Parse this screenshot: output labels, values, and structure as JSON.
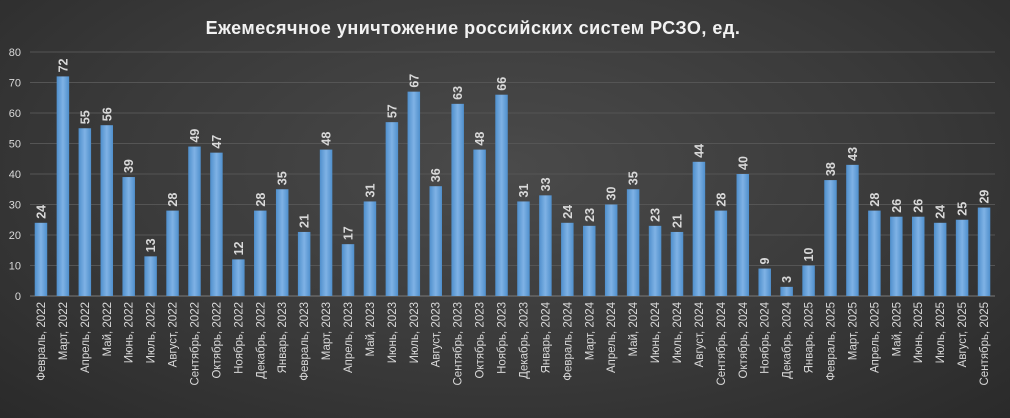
{
  "chart_data": {
    "type": "bar",
    "title": "Ежемесячное  уничтожение  российских  систем РСЗО,  ед.",
    "xlabel": "",
    "ylabel": "",
    "ylim": [
      0,
      80
    ],
    "yticks": [
      0,
      10,
      20,
      30,
      40,
      50,
      60,
      70,
      80
    ],
    "grid": true,
    "bar_color": "#5b9bd5",
    "categories": [
      "Февраль, 2022",
      "Март, 2022",
      "Апрель, 2022",
      "Май, 2022",
      "Июнь, 2022",
      "Июль, 2022",
      "Август, 2022",
      "Сентябрь, 2022",
      "Октябрь, 2022",
      "Ноябрь, 2022",
      "Декабрь, 2022",
      "Январь, 2023",
      "Февраль, 2023",
      "Март, 2023",
      "Апрель, 2023",
      "Май, 2023",
      "Июнь, 2023",
      "Июль, 2023",
      "Август, 2023",
      "Сентябрь, 2023",
      "Октябрь, 2023",
      "Ноябрь, 2023",
      "Декабрь, 2023",
      "Январь, 2024",
      "Февраль, 2024",
      "Март, 2024",
      "Апрель, 2024",
      "Май, 2024",
      "Июнь, 2024",
      "Июль, 2024",
      "Август, 2024",
      "Сентябрь, 2024",
      "Октябрь, 2024",
      "Ноябрь, 2024",
      "Декабрь, 2024",
      "Январь, 2025",
      "Февраль, 2025",
      "Март, 2025",
      "Апрель, 2025",
      "Май, 2025",
      "Июнь, 2025",
      "Июль, 2025",
      "Август, 2025",
      "Сентябрь, 2025"
    ],
    "values": [
      24,
      72,
      55,
      56,
      39,
      13,
      28,
      49,
      47,
      12,
      28,
      35,
      21,
      48,
      17,
      31,
      57,
      67,
      36,
      63,
      48,
      66,
      31,
      33,
      24,
      23,
      30,
      35,
      23,
      21,
      44,
      28,
      40,
      9,
      3,
      10,
      38,
      43,
      28,
      26,
      26,
      24,
      25,
      29
    ]
  }
}
